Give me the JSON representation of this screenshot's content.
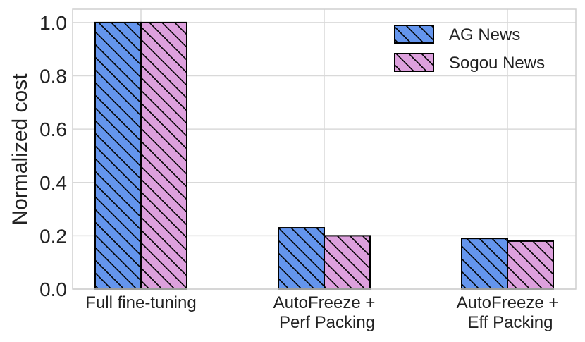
{
  "chart_data": {
    "type": "bar",
    "title": "",
    "xlabel": "",
    "ylabel": "Normalized cost",
    "ylim": [
      0,
      1.05
    ],
    "yticks": [
      "0.0",
      "0.2",
      "0.4",
      "0.6",
      "0.8",
      "1.0"
    ],
    "grid": true,
    "legend_position": "top-right",
    "categories": [
      [
        "Full fine-tuning"
      ],
      [
        "AutoFreeze +",
        "Perf Packing"
      ],
      [
        "AutoFreeze +",
        "Eff Packing"
      ]
    ],
    "series": [
      {
        "name": "AG News",
        "values": [
          1.0,
          0.23,
          0.19
        ],
        "color": "#6495ED",
        "hatch": "diagonal"
      },
      {
        "name": "Sogou News",
        "values": [
          1.0,
          0.2,
          0.18
        ],
        "color": "#DDA0DD",
        "hatch": "diagonal"
      }
    ]
  }
}
